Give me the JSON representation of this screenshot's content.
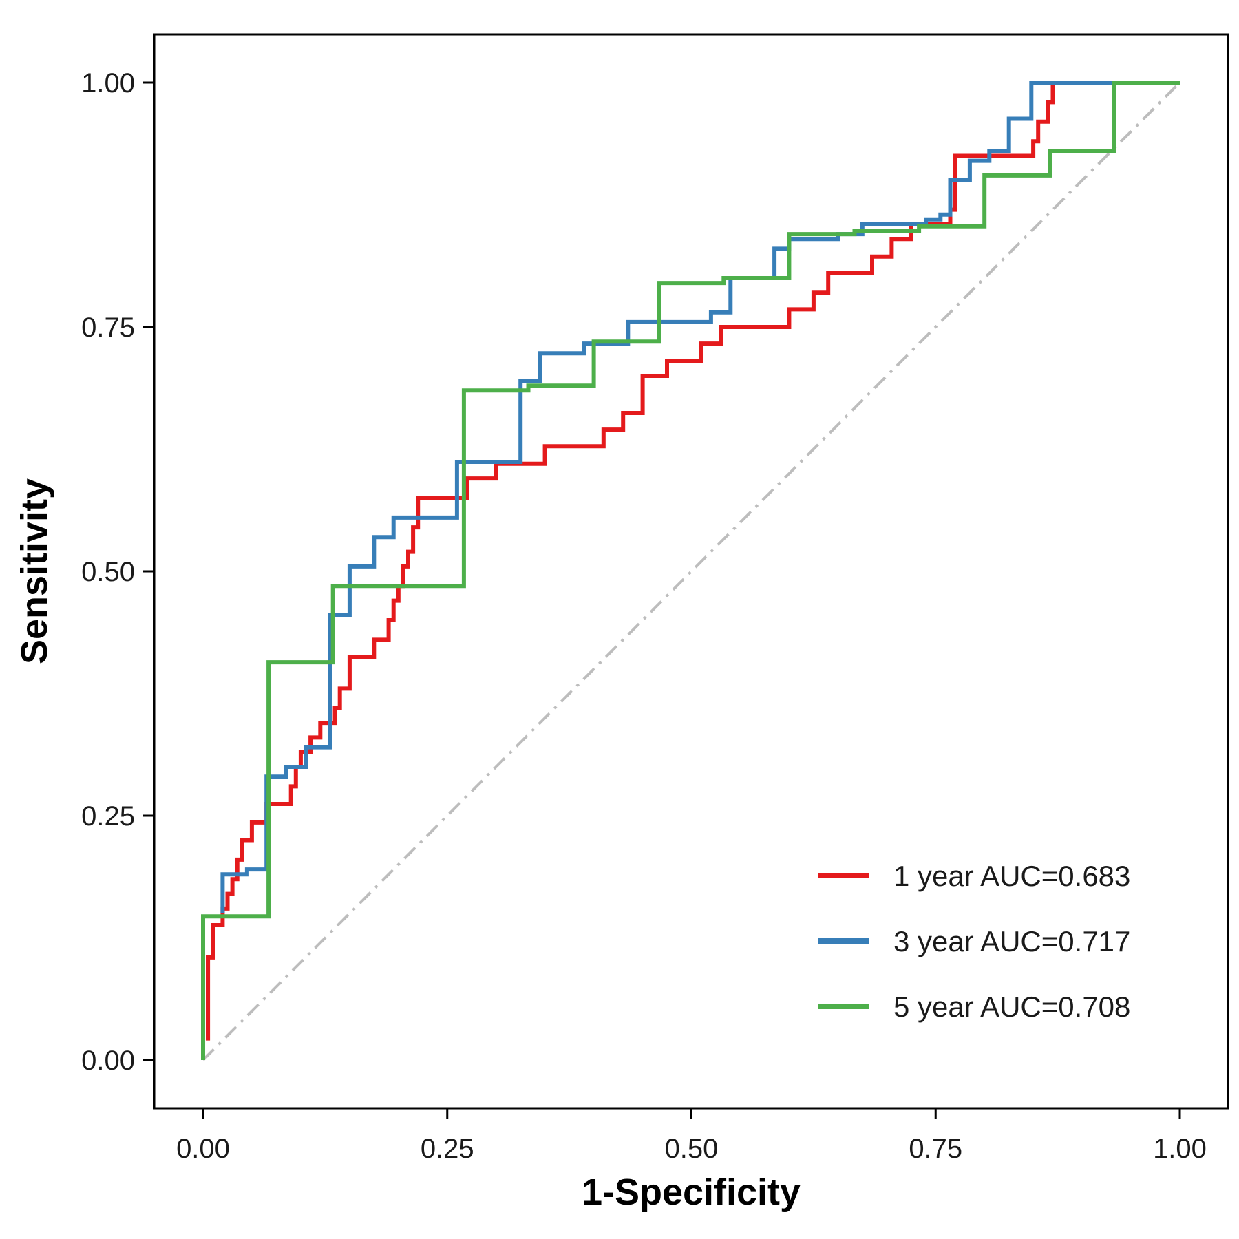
{
  "chart_data": {
    "type": "line",
    "title": "",
    "xlabel": "1-Specificity",
    "ylabel": "Sensitivity",
    "xlim": [
      0,
      1
    ],
    "ylim": [
      0,
      1
    ],
    "x_ticks": [
      "0.00",
      "0.25",
      "0.50",
      "0.75",
      "1.00"
    ],
    "y_ticks": [
      "0.00",
      "0.25",
      "0.50",
      "0.75",
      "1.00"
    ],
    "grid": false,
    "legend_position": "bottom-right",
    "reference_line": {
      "style": "dash-dot",
      "color": "#bdbdbd",
      "points": [
        [
          0,
          0
        ],
        [
          1,
          1
        ]
      ]
    },
    "series": [
      {
        "name": "1 year AUC=0.683",
        "color": "#e41a1c",
        "points": [
          [
            0.005,
            0.02
          ],
          [
            0.005,
            0.105
          ],
          [
            0.01,
            0.105
          ],
          [
            0.01,
            0.138
          ],
          [
            0.02,
            0.138
          ],
          [
            0.02,
            0.155
          ],
          [
            0.025,
            0.155
          ],
          [
            0.025,
            0.17
          ],
          [
            0.03,
            0.17
          ],
          [
            0.03,
            0.185
          ],
          [
            0.035,
            0.185
          ],
          [
            0.035,
            0.205
          ],
          [
            0.04,
            0.205
          ],
          [
            0.04,
            0.225
          ],
          [
            0.05,
            0.225
          ],
          [
            0.05,
            0.243
          ],
          [
            0.065,
            0.243
          ],
          [
            0.065,
            0.262
          ],
          [
            0.09,
            0.262
          ],
          [
            0.09,
            0.28
          ],
          [
            0.095,
            0.28
          ],
          [
            0.095,
            0.3
          ],
          [
            0.1,
            0.3
          ],
          [
            0.1,
            0.315
          ],
          [
            0.11,
            0.315
          ],
          [
            0.11,
            0.33
          ],
          [
            0.12,
            0.33
          ],
          [
            0.12,
            0.345
          ],
          [
            0.135,
            0.345
          ],
          [
            0.135,
            0.36
          ],
          [
            0.14,
            0.36
          ],
          [
            0.14,
            0.38
          ],
          [
            0.15,
            0.38
          ],
          [
            0.15,
            0.412
          ],
          [
            0.175,
            0.412
          ],
          [
            0.175,
            0.43
          ],
          [
            0.19,
            0.43
          ],
          [
            0.19,
            0.45
          ],
          [
            0.195,
            0.45
          ],
          [
            0.195,
            0.47
          ],
          [
            0.2,
            0.47
          ],
          [
            0.2,
            0.485
          ],
          [
            0.205,
            0.485
          ],
          [
            0.205,
            0.505
          ],
          [
            0.21,
            0.505
          ],
          [
            0.21,
            0.52
          ],
          [
            0.215,
            0.52
          ],
          [
            0.215,
            0.545
          ],
          [
            0.22,
            0.545
          ],
          [
            0.22,
            0.575
          ],
          [
            0.27,
            0.575
          ],
          [
            0.27,
            0.595
          ],
          [
            0.3,
            0.595
          ],
          [
            0.3,
            0.61
          ],
          [
            0.35,
            0.61
          ],
          [
            0.35,
            0.628
          ],
          [
            0.41,
            0.628
          ],
          [
            0.41,
            0.645
          ],
          [
            0.43,
            0.645
          ],
          [
            0.43,
            0.662
          ],
          [
            0.45,
            0.662
          ],
          [
            0.45,
            0.7
          ],
          [
            0.475,
            0.7
          ],
          [
            0.475,
            0.715
          ],
          [
            0.51,
            0.715
          ],
          [
            0.51,
            0.733
          ],
          [
            0.53,
            0.733
          ],
          [
            0.53,
            0.75
          ],
          [
            0.6,
            0.75
          ],
          [
            0.6,
            0.768
          ],
          [
            0.625,
            0.768
          ],
          [
            0.625,
            0.785
          ],
          [
            0.64,
            0.785
          ],
          [
            0.64,
            0.805
          ],
          [
            0.685,
            0.805
          ],
          [
            0.685,
            0.822
          ],
          [
            0.705,
            0.822
          ],
          [
            0.705,
            0.84
          ],
          [
            0.725,
            0.84
          ],
          [
            0.725,
            0.855
          ],
          [
            0.765,
            0.855
          ],
          [
            0.765,
            0.87
          ],
          [
            0.77,
            0.87
          ],
          [
            0.77,
            0.925
          ],
          [
            0.85,
            0.925
          ],
          [
            0.85,
            0.94
          ],
          [
            0.855,
            0.94
          ],
          [
            0.855,
            0.96
          ],
          [
            0.865,
            0.96
          ],
          [
            0.865,
            0.98
          ],
          [
            0.87,
            0.98
          ],
          [
            0.87,
            1.0
          ],
          [
            1.0,
            1.0
          ]
        ]
      },
      {
        "name": "3 year AUC=0.717",
        "color": "#377eb8",
        "points": [
          [
            0.02,
            0.15
          ],
          [
            0.02,
            0.19
          ],
          [
            0.045,
            0.19
          ],
          [
            0.045,
            0.195
          ],
          [
            0.065,
            0.195
          ],
          [
            0.065,
            0.29
          ],
          [
            0.085,
            0.29
          ],
          [
            0.085,
            0.3
          ],
          [
            0.105,
            0.3
          ],
          [
            0.105,
            0.32
          ],
          [
            0.13,
            0.32
          ],
          [
            0.13,
            0.455
          ],
          [
            0.15,
            0.455
          ],
          [
            0.15,
            0.505
          ],
          [
            0.175,
            0.505
          ],
          [
            0.175,
            0.535
          ],
          [
            0.195,
            0.535
          ],
          [
            0.195,
            0.555
          ],
          [
            0.26,
            0.555
          ],
          [
            0.26,
            0.612
          ],
          [
            0.325,
            0.612
          ],
          [
            0.325,
            0.695
          ],
          [
            0.345,
            0.695
          ],
          [
            0.345,
            0.723
          ],
          [
            0.39,
            0.723
          ],
          [
            0.39,
            0.733
          ],
          [
            0.435,
            0.733
          ],
          [
            0.435,
            0.755
          ],
          [
            0.52,
            0.755
          ],
          [
            0.52,
            0.765
          ],
          [
            0.54,
            0.765
          ],
          [
            0.54,
            0.8
          ],
          [
            0.585,
            0.8
          ],
          [
            0.585,
            0.83
          ],
          [
            0.6,
            0.83
          ],
          [
            0.6,
            0.84
          ],
          [
            0.65,
            0.84
          ],
          [
            0.65,
            0.845
          ],
          [
            0.675,
            0.845
          ],
          [
            0.675,
            0.855
          ],
          [
            0.74,
            0.855
          ],
          [
            0.74,
            0.86
          ],
          [
            0.755,
            0.86
          ],
          [
            0.755,
            0.865
          ],
          [
            0.765,
            0.865
          ],
          [
            0.765,
            0.9
          ],
          [
            0.785,
            0.9
          ],
          [
            0.785,
            0.92
          ],
          [
            0.805,
            0.92
          ],
          [
            0.805,
            0.93
          ],
          [
            0.825,
            0.93
          ],
          [
            0.825,
            0.963
          ],
          [
            0.848,
            0.963
          ],
          [
            0.848,
            1.0
          ],
          [
            1.0,
            1.0
          ]
        ]
      },
      {
        "name": "5 year AUC=0.708",
        "color": "#4daf4a",
        "points": [
          [
            0.0,
            0.0
          ],
          [
            0.0,
            0.147
          ],
          [
            0.067,
            0.147
          ],
          [
            0.067,
            0.407
          ],
          [
            0.133,
            0.407
          ],
          [
            0.133,
            0.485
          ],
          [
            0.267,
            0.485
          ],
          [
            0.267,
            0.685
          ],
          [
            0.333,
            0.685
          ],
          [
            0.333,
            0.69
          ],
          [
            0.4,
            0.69
          ],
          [
            0.4,
            0.735
          ],
          [
            0.467,
            0.735
          ],
          [
            0.467,
            0.795
          ],
          [
            0.533,
            0.795
          ],
          [
            0.533,
            0.8
          ],
          [
            0.6,
            0.8
          ],
          [
            0.6,
            0.845
          ],
          [
            0.667,
            0.845
          ],
          [
            0.667,
            0.848
          ],
          [
            0.733,
            0.848
          ],
          [
            0.733,
            0.853
          ],
          [
            0.8,
            0.853
          ],
          [
            0.8,
            0.905
          ],
          [
            0.867,
            0.905
          ],
          [
            0.867,
            0.93
          ],
          [
            0.933,
            0.93
          ],
          [
            0.933,
            1.0
          ],
          [
            1.0,
            1.0
          ]
        ]
      }
    ]
  }
}
